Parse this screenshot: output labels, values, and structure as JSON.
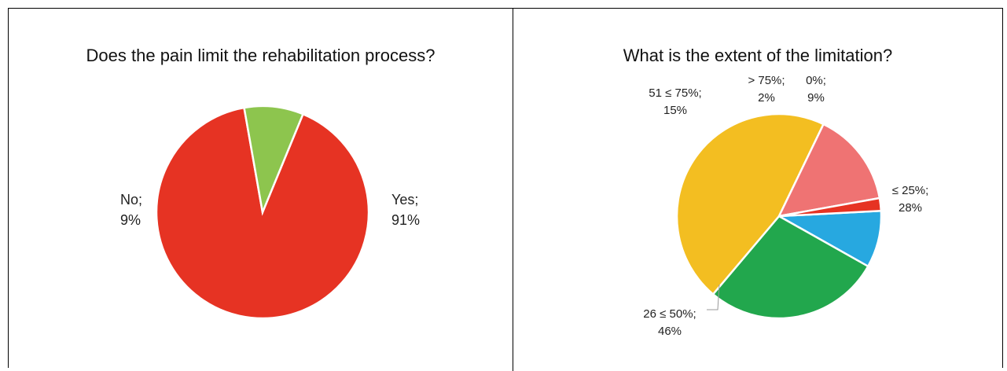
{
  "chart_data": [
    {
      "type": "pie",
      "title": "Does the pain limit the rehabilitation process?",
      "slices": [
        {
          "label": "Yes;",
          "value": 91,
          "value_label": "91%",
          "color": "#e63323"
        },
        {
          "label": "No;",
          "value": 9,
          "value_label": "9%",
          "color": "#8dc54e"
        }
      ]
    },
    {
      "type": "pie",
      "title": "What is the extent of the limitation?",
      "slices": [
        {
          "label": "0%;",
          "value": 9,
          "value_label": "9%",
          "color": "#27a8e0"
        },
        {
          "label": "≤ 25%;",
          "value": 28,
          "value_label": "28%",
          "color": "#22a74d"
        },
        {
          "label": "26 ≤ 50%;",
          "value": 46,
          "value_label": "46%",
          "color": "#f3be21"
        },
        {
          "label": "51 ≤ 75%;",
          "value": 15,
          "value_label": "15%",
          "color": "#ef7373"
        },
        {
          "label": "> 75%;",
          "value": 2,
          "value_label": "2%",
          "color": "#e63323"
        }
      ]
    }
  ]
}
